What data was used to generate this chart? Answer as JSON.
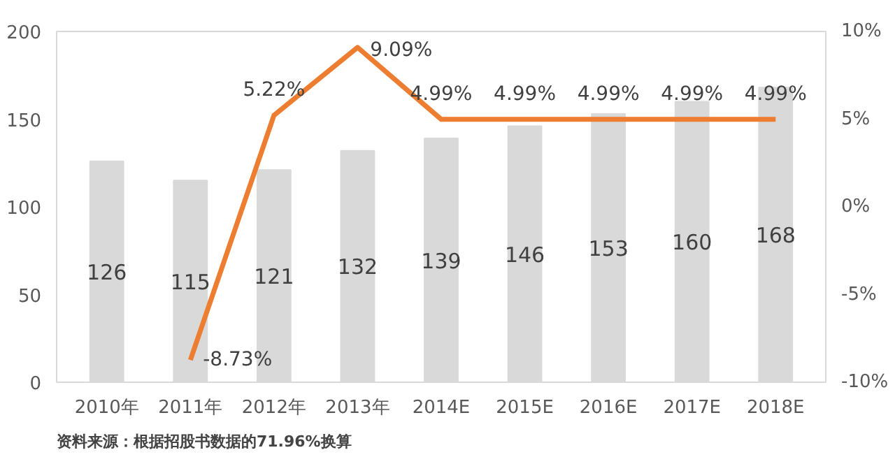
{
  "chart_data": {
    "type": "bar",
    "categories": [
      "2010年",
      "2011年",
      "2012年",
      "2013年",
      "2014E",
      "2015E",
      "2016E",
      "2017E",
      "2018E"
    ],
    "ylim": [
      0,
      200
    ],
    "yticks": [
      0,
      50,
      100,
      150,
      200
    ],
    "y2lim": [
      -10,
      10
    ],
    "y2ticks": [
      {
        "value": -10,
        "label": "-10%"
      },
      {
        "value": -5,
        "label": "-5%"
      },
      {
        "value": 0,
        "label": "0%"
      },
      {
        "value": 5,
        "label": "5%"
      },
      {
        "value": 10,
        "label": "10%"
      }
    ],
    "series": [
      {
        "color": "#d9d9d9",
        "values": [
          126,
          115,
          121,
          132,
          139,
          146,
          153,
          160,
          168
        ]
      },
      {
        "type": "line",
        "axis": "y2",
        "color": "#ed7d31",
        "values": [
          null,
          -8.73,
          5.22,
          9.09,
          4.99,
          4.99,
          4.99,
          4.99,
          4.99
        ],
        "value_labels": [
          null,
          "-8.73%",
          "5.22%",
          "9.09%",
          "4.99%",
          "4.99%",
          "4.99%",
          "4.99%",
          "4.99%"
        ]
      }
    ],
    "data_labels": true,
    "grid": false,
    "marker": "none",
    "annotations": [
      "资料来源：根据招股书数据的71.96%换算"
    ]
  }
}
